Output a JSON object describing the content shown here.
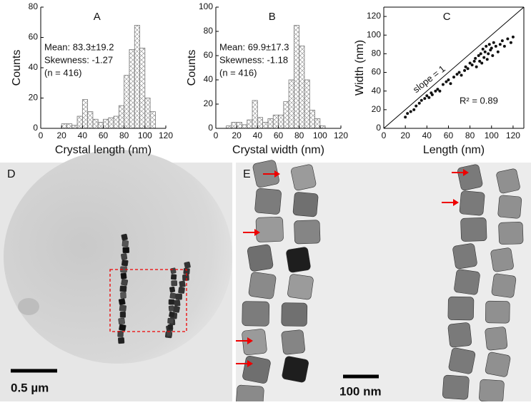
{
  "chart_data": [
    {
      "type": "histogram",
      "title": "A",
      "x_label": "Crystal length (nm)",
      "y_label": "Counts",
      "bins": [
        20,
        25,
        30,
        35,
        40,
        45,
        50,
        55,
        60,
        65,
        70,
        75,
        80,
        85,
        90,
        95,
        100,
        105,
        110
      ],
      "counts": [
        3,
        3,
        2,
        8,
        19,
        11,
        6,
        4,
        6,
        7,
        8,
        15,
        35,
        52,
        68,
        53,
        20,
        11
      ],
      "color": "#777777",
      "hatch": "crosshatch",
      "xlim": [
        0,
        120
      ],
      "xticks": [
        0,
        20,
        40,
        60,
        80,
        100,
        120
      ],
      "ylim": [
        0,
        80
      ],
      "yticks": [
        0,
        20,
        40,
        60,
        80
      ],
      "annotations": [
        "Mean: 83.3±19.2",
        "Skewness: -1.27",
        "(n = 416)"
      ]
    },
    {
      "type": "histogram",
      "title": "B",
      "x_label": "Crystal width (nm)",
      "y_label": "Counts",
      "bins": [
        10,
        15,
        20,
        25,
        30,
        35,
        40,
        45,
        50,
        55,
        60,
        65,
        70,
        75,
        80,
        85,
        90,
        95,
        100,
        105
      ],
      "counts": [
        2,
        5,
        5,
        3,
        7,
        23,
        9,
        5,
        8,
        11,
        11,
        22,
        40,
        85,
        68,
        40,
        15,
        8,
        2
      ],
      "color": "#777777",
      "hatch": "crosshatch",
      "xlim": [
        0,
        120
      ],
      "xticks": [
        0,
        20,
        40,
        60,
        80,
        100,
        120
      ],
      "ylim": [
        0,
        100
      ],
      "yticks": [
        0,
        20,
        40,
        60,
        80,
        100
      ],
      "annotations": [
        "Mean: 69.9±17.3",
        "Skewness: -1.18",
        "(n = 416)"
      ]
    },
    {
      "type": "scatter",
      "title": "C",
      "x_label": "Length (nm)",
      "y_label": "Width (nm)",
      "frame": true,
      "x": [
        20,
        22,
        25,
        28,
        30,
        33,
        35,
        38,
        40,
        42,
        44,
        45,
        48,
        50,
        52,
        55,
        58,
        60,
        62,
        65,
        68,
        70,
        72,
        75,
        76,
        78,
        80,
        82,
        84,
        85,
        86,
        88,
        89,
        90,
        91,
        92,
        93,
        94,
        95,
        96,
        97,
        98,
        99,
        100,
        101,
        102,
        104,
        106,
        108,
        110,
        112,
        115,
        118,
        120
      ],
      "y": [
        12,
        16,
        18,
        20,
        24,
        27,
        30,
        32,
        35,
        33,
        38,
        36,
        40,
        42,
        40,
        47,
        50,
        52,
        48,
        55,
        58,
        60,
        57,
        62,
        66,
        64,
        70,
        68,
        72,
        75,
        66,
        78,
        72,
        80,
        70,
        85,
        76,
        82,
        88,
        74,
        80,
        90,
        84,
        86,
        78,
        92,
        88,
        82,
        90,
        94,
        88,
        96,
        92,
        98
      ],
      "color": "#111111",
      "xlim": [
        0,
        130
      ],
      "xticks": [
        0,
        20,
        40,
        60,
        80,
        100,
        120
      ],
      "ylim": [
        0,
        130
      ],
      "yticks": [
        0,
        20,
        40,
        60,
        80,
        100,
        120
      ],
      "annotations": [
        "slope = 1",
        "R² = 0.89"
      ]
    }
  ],
  "images": [
    {
      "label": "D",
      "scale": "0.5 µm"
    },
    {
      "label": "E",
      "scale": "100 nm"
    }
  ]
}
